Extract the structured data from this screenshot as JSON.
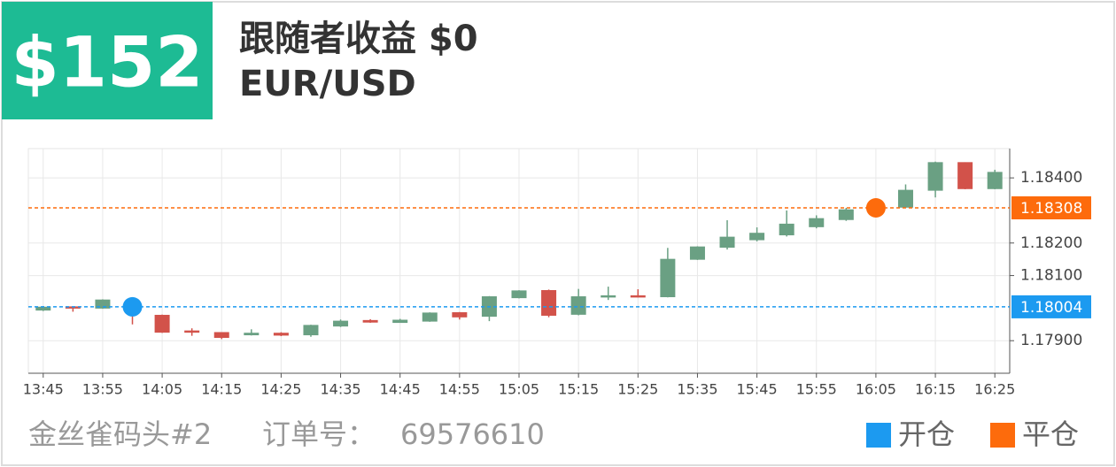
{
  "header": {
    "amount": "$152",
    "title": "跟随者收益 $0",
    "symbol": "EUR/USD"
  },
  "footer": {
    "account": "金丝雀码头#2",
    "order_label": "订单号：",
    "order_id": "69576610"
  },
  "chart_data": {
    "type": "candlestick",
    "categories": [
      "13:45",
      null,
      "13:55",
      null,
      "14:05",
      null,
      "14:15",
      null,
      "14:25",
      null,
      "14:35",
      null,
      "14:45",
      null,
      "14:55",
      null,
      "15:05",
      null,
      "15:15",
      null,
      "15:25",
      null,
      "15:35",
      null,
      "15:45",
      null,
      "15:55",
      null,
      "16:05",
      null,
      "16:15",
      null,
      "16:25"
    ],
    "open": [
      1.17994,
      1.18004,
      1.18,
      1.18022,
      1.17978,
      1.1793,
      1.17925,
      1.17918,
      1.17923,
      1.17918,
      1.17945,
      1.17962,
      1.17956,
      1.1796,
      1.17986,
      1.17975,
      1.18032,
      1.18054,
      1.17981,
      1.18035,
      1.18038,
      1.18035,
      1.1815,
      1.18187,
      1.1821,
      1.18225,
      1.1825,
      1.18272,
      1.183,
      1.1831,
      1.18362,
      1.18447,
      1.18367
    ],
    "high": [
      1.18006,
      1.18005,
      1.18027,
      1.18025,
      1.1798,
      1.17938,
      1.17926,
      1.17935,
      1.17926,
      1.17949,
      1.17965,
      1.17966,
      1.17967,
      1.17987,
      1.17988,
      1.18037,
      1.18055,
      1.18057,
      1.18059,
      1.18066,
      1.18058,
      1.18185,
      1.1819,
      1.1827,
      1.18248,
      1.183,
      1.18285,
      1.18308,
      1.1831,
      1.1838,
      1.1845,
      1.18448,
      1.18425
    ],
    "low": [
      1.17991,
      1.17989,
      1.17998,
      1.1795,
      1.17924,
      1.17915,
      1.17905,
      1.17916,
      1.17914,
      1.17912,
      1.17942,
      1.17955,
      1.17955,
      1.17958,
      1.17965,
      1.1796,
      1.1803,
      1.17972,
      1.17978,
      1.18025,
      1.18033,
      1.18033,
      1.18148,
      1.1818,
      1.18205,
      1.1822,
      1.18245,
      1.18268,
      1.18295,
      1.18308,
      1.1834,
      1.18365,
      1.18365
    ],
    "close": [
      1.18003,
      1.18002,
      1.18025,
      1.17995,
      1.17926,
      1.17926,
      1.1791,
      1.17923,
      1.17917,
      1.17947,
      1.1796,
      1.17957,
      1.17963,
      1.17985,
      1.17973,
      1.18035,
      1.18053,
      1.17978,
      1.18035,
      1.18038,
      1.18035,
      1.1815,
      1.18188,
      1.18218,
      1.1823,
      1.18258,
      1.18275,
      1.18302,
      1.18305,
      1.18362,
      1.18447,
      1.18367,
      1.18417
    ],
    "up_color": "#6aa083",
    "down_color": "#d2524a",
    "ylim": [
      1.178,
      1.1849
    ],
    "yticks": [
      {
        "value": 1.179,
        "label": "1.17900"
      },
      {
        "value": 1.181,
        "label": "1.18100"
      },
      {
        "value": 1.182,
        "label": "1.18200"
      },
      {
        "value": 1.184,
        "label": "1.18400"
      }
    ],
    "grid": true,
    "markers": [
      {
        "name": "开仓",
        "index": 3,
        "value": 1.18004,
        "color": "#1c9af0"
      },
      {
        "name": "平仓",
        "index": 28,
        "value": 1.18308,
        "color": "#fd6b0c"
      }
    ]
  }
}
